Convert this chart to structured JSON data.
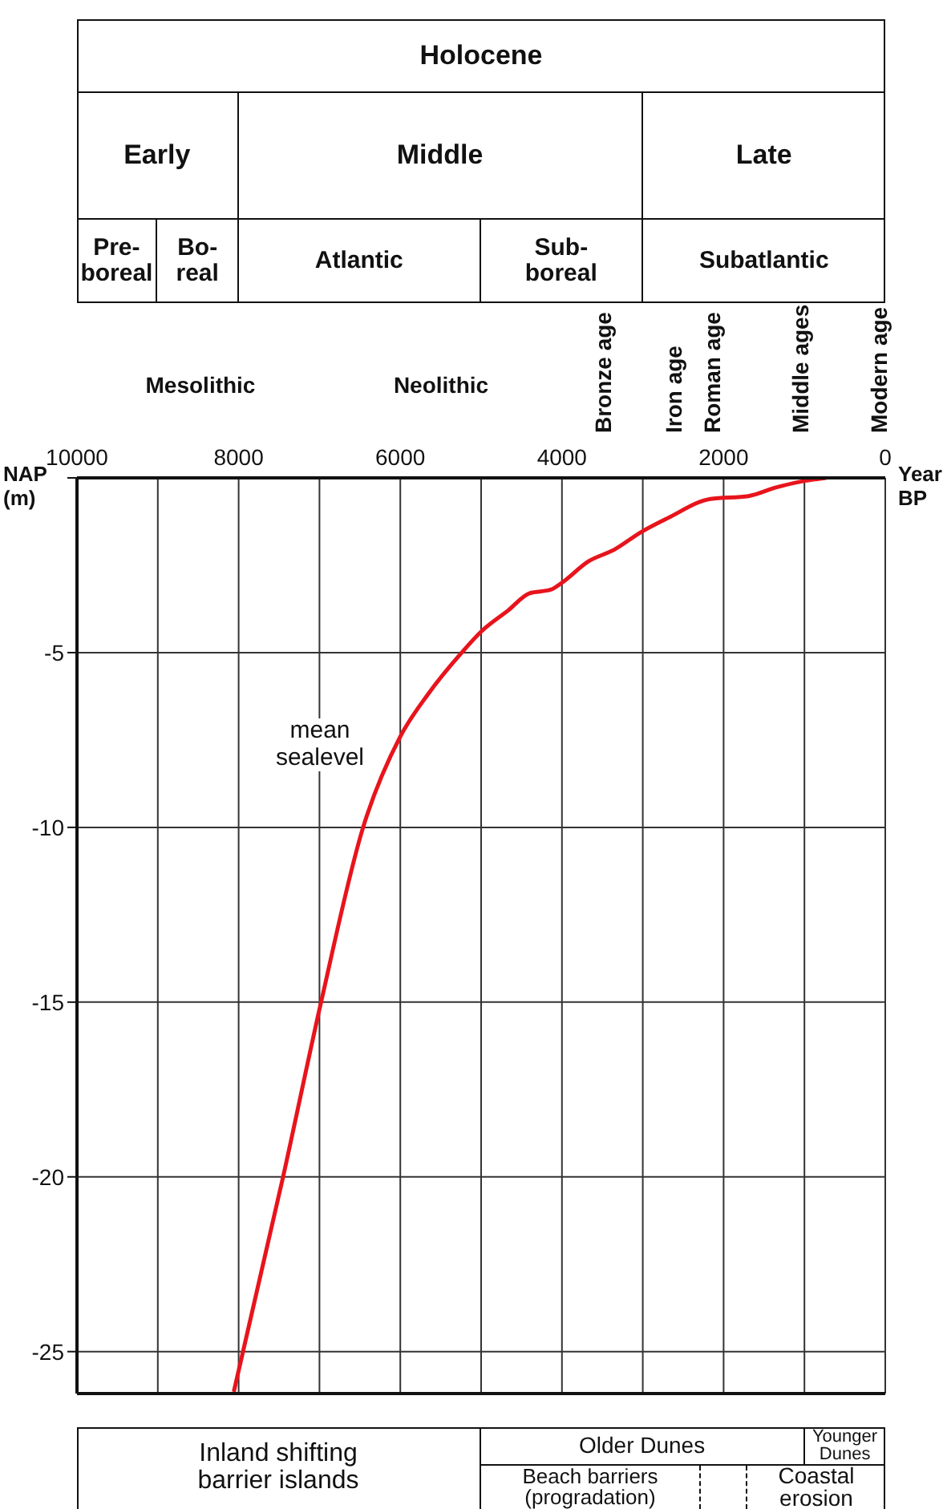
{
  "chart_data": {
    "type": "line",
    "xlabel": "Year BP",
    "ylabel": "NAP (m)",
    "xlim": [
      10000,
      0
    ],
    "xticks": [
      10000,
      {
        "value": 9000,
        "label": null
      },
      8000,
      {
        "value": 7000,
        "label": null
      },
      6000,
      {
        "value": 5000,
        "label": null
      },
      4000,
      {
        "value": 3000,
        "label": null
      },
      2000,
      {
        "value": 1000,
        "label": null
      },
      0
    ],
    "ylim": [
      -26.2,
      0
    ],
    "yticks": [
      {
        "value": 0,
        "label": null
      },
      -5,
      -10,
      -15,
      -20,
      -25
    ],
    "grid": true,
    "marker": "none",
    "line_style": "solid",
    "series": [
      {
        "color": "#e8141c",
        "x": [
          8060,
          7450,
          6980,
          6460,
          6000,
          5660,
          5240,
          5000,
          4670,
          4400,
          4140,
          4000,
          3680,
          3350,
          3020,
          2690,
          2160,
          1690,
          1360,
          1030,
          730
        ],
        "values": [
          -26.15,
          -20,
          -15,
          -10,
          -7.4,
          -6.2,
          -5,
          -4.4,
          -3.8,
          -3.3,
          -3.2,
          -3,
          -2.4,
          -2.05,
          -1.55,
          -1.15,
          -0.6,
          -0.52,
          -0.28,
          -0.1,
          0
        ]
      }
    ],
    "annotations": [
      "Holocene",
      "Early",
      "Middle",
      "Late",
      "Pre-boreal",
      "Bo-real",
      "Atlantic",
      "Sub-boreal",
      "Subatlantic",
      "Mesolithic",
      "Neolithic",
      "Bronze age",
      "Iron age",
      "Roman age",
      "Middle ages",
      "Modern age",
      "Inland shifting barrier islands",
      "Older Dunes",
      "Younger Dunes",
      "Beach barriers (progradation)",
      "Coastal erosion",
      "mean sealevel"
    ]
  }
}
